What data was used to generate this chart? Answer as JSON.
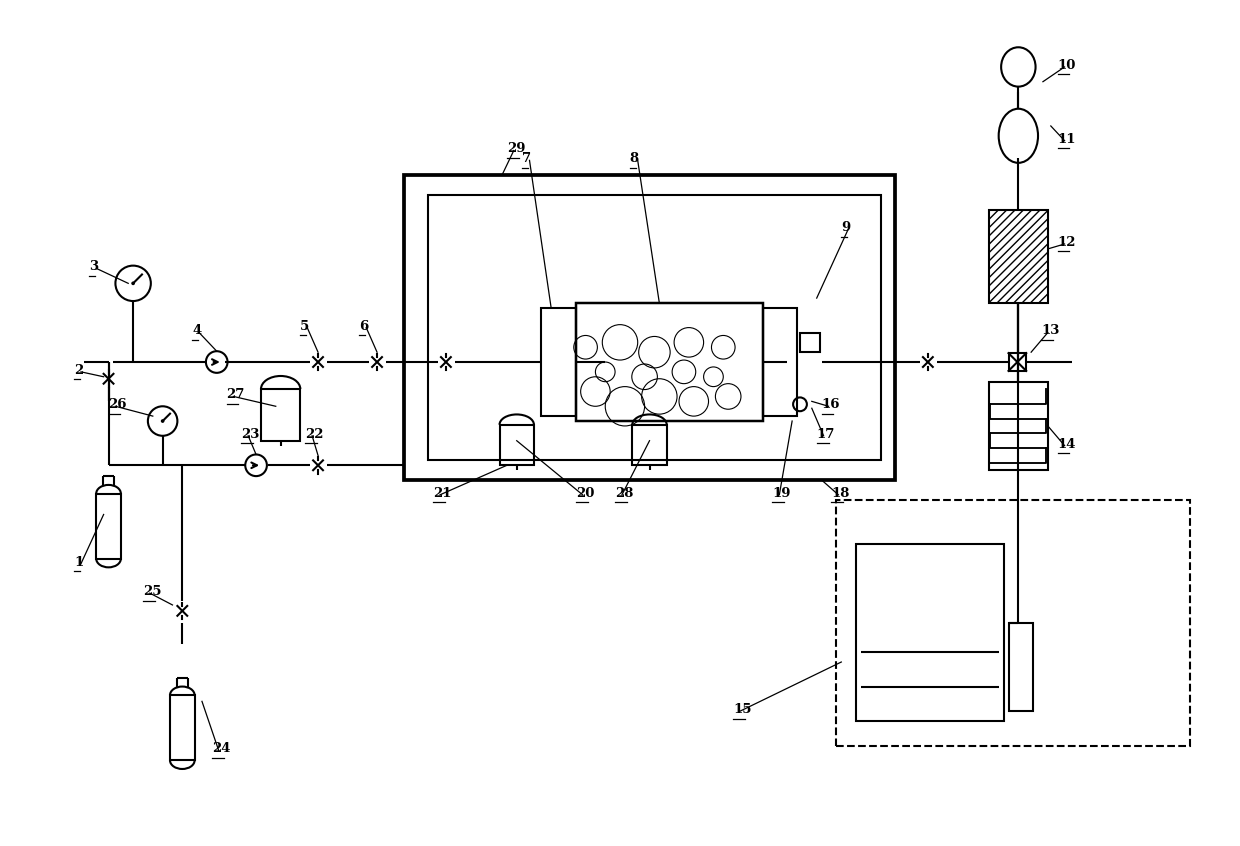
{
  "bg_color": "#ffffff",
  "line_color": "#000000",
  "line_width": 1.5,
  "fig_width": 12.4,
  "fig_height": 8.46
}
